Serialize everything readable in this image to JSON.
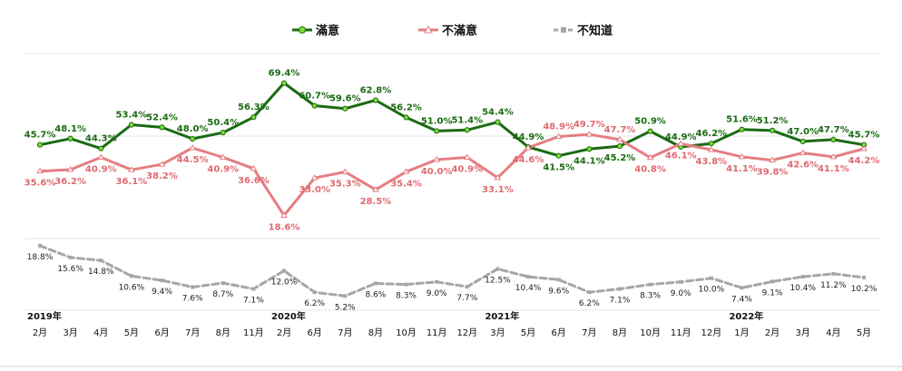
{
  "chart_data": {
    "type": "line",
    "categories": [
      "2月",
      "3月",
      "4月",
      "5月",
      "6月",
      "7月",
      "8月",
      "11月",
      "2月",
      "6月",
      "7月",
      "8月",
      "10月",
      "11月",
      "12月",
      "3月",
      "5月",
      "6月",
      "7月",
      "8月",
      "10月",
      "11月",
      "12月",
      "1月",
      "2月",
      "3月",
      "4月",
      "5月"
    ],
    "year_labels": [
      {
        "index": 0,
        "label": "2019年"
      },
      {
        "index": 8,
        "label": "2020年"
      },
      {
        "index": 15,
        "label": "2021年"
      },
      {
        "index": 23,
        "label": "2022年"
      }
    ],
    "series": [
      {
        "name": "滿意",
        "color": "#1a6b12",
        "marker": "#7ddc3a",
        "values": [
          45.7,
          48.1,
          44.3,
          53.4,
          52.4,
          48.0,
          50.4,
          56.3,
          69.4,
          60.7,
          59.6,
          62.8,
          56.2,
          51.0,
          51.4,
          54.4,
          44.9,
          41.5,
          44.1,
          45.2,
          50.9,
          44.9,
          46.2,
          51.6,
          51.2,
          47.0,
          47.7,
          45.7
        ]
      },
      {
        "name": "不滿意",
        "color": "#e57e82",
        "marker": "#ffffff",
        "values": [
          35.6,
          36.2,
          40.9,
          36.1,
          38.2,
          44.5,
          40.9,
          36.6,
          18.6,
          33.0,
          35.3,
          28.5,
          35.4,
          40.0,
          40.9,
          33.1,
          44.6,
          48.9,
          49.7,
          47.7,
          40.8,
          46.1,
          43.8,
          41.1,
          39.8,
          42.6,
          41.1,
          44.2
        ]
      },
      {
        "name": "不知道",
        "color": "#a6a6a6",
        "marker": "#a6a6a6",
        "values": [
          18.8,
          15.6,
          14.8,
          10.6,
          9.4,
          7.6,
          8.7,
          7.1,
          12.0,
          6.2,
          5.2,
          8.6,
          8.3,
          9.0,
          7.7,
          12.5,
          10.4,
          9.6,
          6.2,
          7.1,
          8.3,
          9.0,
          10.0,
          7.4,
          9.1,
          10.4,
          11.2,
          10.2
        ]
      }
    ],
    "labels": [
      [
        "45.7%",
        "48.1%",
        "44.3%",
        "53.4%",
        "52.4%",
        "48.0%",
        "50.4%",
        "56.3%",
        "69.4%",
        "60.7%",
        "59.6%",
        "62.8%",
        "56.2%",
        "51.0%",
        "51.4%",
        "54.4%",
        "44.9%",
        "41.5%",
        "44.1%",
        "45.2%",
        "50.9%",
        "44.9%",
        "46.2%",
        "51.6%",
        "51.2%",
        "47.0%",
        "47.7%",
        "45.7%"
      ],
      [
        "35.6%",
        "36.2%",
        "40.9%",
        "36.1%",
        "38.2%",
        "44.5%",
        "40.9%",
        "36.6%",
        "18.6%",
        "33.0%",
        "35.3%",
        "28.5%",
        "35.4%",
        "40.0%",
        "40.9%",
        "33.1%",
        "44.6%",
        "48.9%",
        "49.7%",
        "47.7%",
        "40.8%",
        "46.1%",
        "43.8%",
        "41.1%",
        "39.8%",
        "42.6%",
        "41.1%",
        "44.2%"
      ],
      [
        "18.8%",
        "15.6%",
        "14.8%",
        "10.6%",
        "9.4%",
        "7.6%",
        "8.7%",
        "7.1%",
        "12.0%",
        "6.2%",
        "5.2%",
        "8.6%",
        "8.3%",
        "9.0%",
        "7.7%",
        "12.5%",
        "10.4%",
        "9.6%",
        "6.2%",
        "7.1%",
        "8.3%",
        "9.0%",
        "10.0%",
        "7.4%",
        "9.1%",
        "10.4%",
        "11.2%",
        "10.2%"
      ]
    ],
    "grid": true,
    "legend_position": "top-center"
  }
}
